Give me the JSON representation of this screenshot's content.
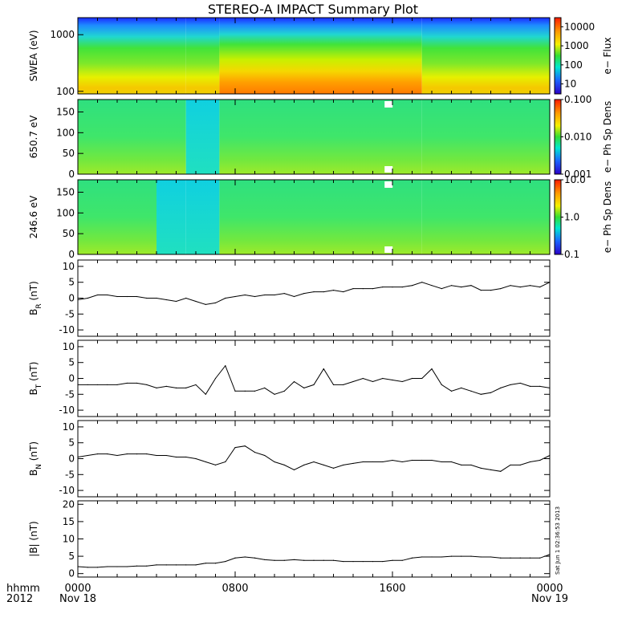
{
  "title": "STEREO-A IMPACT Summary Plot",
  "footer": {
    "left_top": "hhmm",
    "left_bottom": "2012",
    "x_ticks": [
      {
        "label": "0000",
        "sub": "Nov 18",
        "hour": 0
      },
      {
        "label": "0800",
        "sub": "",
        "hour": 8
      },
      {
        "label": "1600",
        "sub": "",
        "hour": 16
      },
      {
        "label": "0000",
        "sub": "Nov 19",
        "hour": 24
      }
    ]
  },
  "timestamp": "Sat Jun 1 02:36:53 2013",
  "chart_data": [
    {
      "type": "heatmap",
      "ylabel": "SWEA (eV)",
      "yscale": "log",
      "ylim": [
        90,
        2000
      ],
      "yticks": [
        "1000",
        "100"
      ],
      "ytick_values": [
        1000,
        100
      ],
      "colorbar": {
        "label": "e− Flux",
        "scale": "log",
        "ticks": [
          "10000",
          "1000",
          "100",
          "10"
        ],
        "tick_values": [
          10000,
          1000,
          100,
          10
        ],
        "range": [
          3,
          30000
        ]
      }
    },
    {
      "type": "heatmap",
      "ylabel": "650.7 eV",
      "ylim": [
        0,
        180
      ],
      "yticks": [
        "150",
        "100",
        "50",
        "0"
      ],
      "ytick_values": [
        150,
        100,
        50,
        0
      ],
      "colorbar": {
        "label": "e− Ph Sp Dens",
        "scale": "log",
        "ticks": [
          "0.100",
          "0.010",
          "0.001"
        ],
        "tick_values": [
          0.1,
          0.01,
          0.001
        ],
        "range": [
          0.001,
          0.1
        ]
      }
    },
    {
      "type": "heatmap",
      "ylabel": "246.6 eV",
      "ylim": [
        0,
        180
      ],
      "yticks": [
        "150",
        "100",
        "50",
        "0"
      ],
      "ytick_values": [
        150,
        100,
        50,
        0
      ],
      "colorbar": {
        "label": "e− Ph Sp Dens",
        "scale": "log",
        "ticks": [
          "10.0",
          "1.0",
          "0.1"
        ],
        "tick_values": [
          10,
          1,
          0.1
        ],
        "range": [
          0.1,
          10
        ]
      }
    },
    {
      "type": "line",
      "ylabel": "B",
      "ylabel_sub": "R",
      "ylabel_unit": " (nT)",
      "ylim": [
        -12,
        12
      ],
      "yticks": [
        "10",
        "5",
        "0",
        "-5",
        "-10"
      ],
      "ytick_values": [
        10,
        5,
        0,
        -5,
        -10
      ],
      "x": [
        0,
        0.5,
        1,
        1.5,
        2,
        2.5,
        3,
        3.5,
        4,
        4.5,
        5,
        5.5,
        6,
        6.5,
        7,
        7.5,
        8,
        8.5,
        9,
        9.5,
        10,
        10.5,
        11,
        11.5,
        12,
        12.5,
        13,
        13.5,
        14,
        14.5,
        15,
        15.5,
        16,
        16.5,
        17,
        17.5,
        18,
        18.5,
        19,
        19.5,
        20,
        20.5,
        21,
        21.5,
        22,
        22.5,
        23,
        23.5,
        24
      ],
      "y": [
        -0.5,
        0,
        1,
        1,
        0.5,
        0.5,
        0.5,
        0,
        0,
        -0.5,
        -1,
        0,
        -1,
        -2,
        -1.5,
        0,
        0.5,
        1,
        0.5,
        1,
        1,
        1.5,
        0.5,
        1.5,
        2,
        2,
        2.5,
        2,
        3,
        3,
        3,
        3.5,
        3.5,
        3.5,
        4,
        5,
        4,
        3,
        4,
        3.5,
        4,
        2.5,
        2.5,
        3,
        4,
        3.5,
        4,
        3.5,
        5
      ]
    },
    {
      "type": "line",
      "ylabel": "B",
      "ylabel_sub": "T",
      "ylabel_unit": " (nT)",
      "ylim": [
        -12,
        12
      ],
      "yticks": [
        "10",
        "5",
        "0",
        "-5",
        "-10"
      ],
      "ytick_values": [
        10,
        5,
        0,
        -5,
        -10
      ],
      "x": [
        0,
        0.5,
        1,
        1.5,
        2,
        2.5,
        3,
        3.5,
        4,
        4.5,
        5,
        5.5,
        6,
        6.5,
        7,
        7.5,
        8,
        8.5,
        9,
        9.5,
        10,
        10.5,
        11,
        11.5,
        12,
        12.5,
        13,
        13.5,
        14,
        14.5,
        15,
        15.5,
        16,
        16.5,
        17,
        17.5,
        18,
        18.5,
        19,
        19.5,
        20,
        20.5,
        21,
        21.5,
        22,
        22.5,
        23,
        23.5,
        24
      ],
      "y": [
        -2,
        -2,
        -2,
        -2,
        -2,
        -1.5,
        -1.5,
        -2,
        -3,
        -2.5,
        -3,
        -3,
        -2,
        -5,
        0,
        4,
        -4,
        -4,
        -4,
        -3,
        -5,
        -4,
        -1,
        -3,
        -2,
        3,
        -2,
        -2,
        -1,
        0,
        -1,
        0,
        -0.5,
        -1,
        0,
        0,
        3,
        -2,
        -4,
        -3,
        -4,
        -5,
        -4.5,
        -3,
        -2,
        -1.5,
        -2.5,
        -2.5,
        -3
      ]
    },
    {
      "type": "line",
      "ylabel": "B",
      "ylabel_sub": "N",
      "ylabel_unit": " (nT)",
      "ylim": [
        -12,
        12
      ],
      "yticks": [
        "10",
        "5",
        "0",
        "-5",
        "-10"
      ],
      "ytick_values": [
        10,
        5,
        0,
        -5,
        -10
      ],
      "x": [
        0,
        0.5,
        1,
        1.5,
        2,
        2.5,
        3,
        3.5,
        4,
        4.5,
        5,
        5.5,
        6,
        6.5,
        7,
        7.5,
        8,
        8.5,
        9,
        9.5,
        10,
        10.5,
        11,
        11.5,
        12,
        12.5,
        13,
        13.5,
        14,
        14.5,
        15,
        15.5,
        16,
        16.5,
        17,
        17.5,
        18,
        18.5,
        19,
        19.5,
        20,
        20.5,
        21,
        21.5,
        22,
        22.5,
        23,
        23.5,
        24
      ],
      "y": [
        0.5,
        1,
        1.5,
        1.5,
        1,
        1.5,
        1.5,
        1.5,
        1,
        1,
        0.5,
        0.5,
        0,
        -1,
        -2,
        -1,
        3.5,
        4,
        2,
        1,
        -1,
        -2,
        -3.5,
        -2,
        -1,
        -2,
        -3,
        -2,
        -1.5,
        -1,
        -1,
        -1,
        -0.5,
        -1,
        -0.5,
        -0.5,
        -0.5,
        -1,
        -1,
        -2,
        -2,
        -3,
        -3.5,
        -4,
        -2,
        -2,
        -1,
        -0.5,
        1
      ]
    },
    {
      "type": "line",
      "ylabel": "|B| (nT)",
      "ylim": [
        -1,
        21
      ],
      "yticks": [
        "20",
        "15",
        "10",
        "5",
        "0"
      ],
      "ytick_values": [
        20,
        15,
        10,
        5,
        0
      ],
      "x": [
        0,
        0.5,
        1,
        1.5,
        2,
        2.5,
        3,
        3.5,
        4,
        4.5,
        5,
        5.5,
        6,
        6.5,
        7,
        7.5,
        8,
        8.5,
        9,
        9.5,
        10,
        10.5,
        11,
        11.5,
        12,
        12.5,
        13,
        13.5,
        14,
        14.5,
        15,
        15.5,
        16,
        16.5,
        17,
        17.5,
        18,
        18.5,
        19,
        19.5,
        20,
        20.5,
        21,
        21.5,
        22,
        22.5,
        23,
        23.5,
        24
      ],
      "y": [
        2,
        1.8,
        1.8,
        2,
        2,
        2,
        2.2,
        2.2,
        2.5,
        2.5,
        2.5,
        2.5,
        2.5,
        3,
        3,
        3.5,
        4.5,
        4.8,
        4.5,
        4,
        3.8,
        3.8,
        4,
        3.8,
        3.8,
        3.8,
        3.8,
        3.5,
        3.5,
        3.5,
        3.5,
        3.5,
        3.8,
        3.8,
        4.5,
        4.8,
        4.8,
        4.8,
        5,
        5,
        5,
        4.8,
        4.8,
        4.5,
        4.5,
        4.5,
        4.5,
        4.5,
        5.5
      ]
    }
  ]
}
